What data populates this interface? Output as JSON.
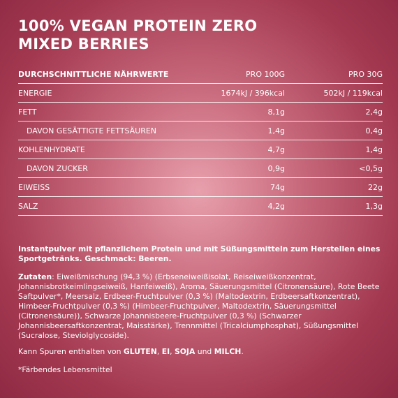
{
  "title_line1": "100% VEGAN PROTEIN ZERO",
  "title_line2": "MIXED BERRIES",
  "table": {
    "headers": [
      "DURCHSCHNITTLICHE NÄHRWERTE",
      "PRO 100G",
      "PRO 30G"
    ],
    "rows": [
      {
        "label": "ENERGIE",
        "per100": "1674kJ / 396kcal",
        "per30": "502kJ / 119kcal"
      },
      {
        "label": "FETT",
        "per100": "8,1g",
        "per30": "2,4g"
      },
      {
        "label": "DAVON GESÄTTIGTE FETTSÄUREN",
        "per100": "1,4g",
        "per30": "0,4g"
      },
      {
        "label": "KOHLENHYDRATE",
        "per100": "4,7g",
        "per30": "1,4g"
      },
      {
        "label": "DAVON ZUCKER",
        "per100": "0,9g",
        "per30": "<0,5g"
      },
      {
        "label": "EIWEISS",
        "per100": "74g",
        "per30": "22g"
      },
      {
        "label": "SALZ",
        "per100": "4,2g",
        "per30": "1,3g"
      }
    ]
  },
  "description": "Instantpulver mit pflanzlichem Protein und mit Süßungsmitteln zum Herstellen eines Sportgetränks. Geschmack: Beeren.",
  "ingredients_label": "Zutaten",
  "ingredients_text": ": Eiweißmischung (94,3 %) (Erbseneiweißisolat, Reiseiweißkonzentrat, Johannisbrotkeimlingseiweiß, Hanfeiweiß), Aroma, Säuerungsmittel (Citronensäure), Rote Beete Saftpulver*, Meersalz, Erdbeer-Fruchtpulver (0,3 %) (Maltodextrin, Erdbeersaftkonzentrat), Himbeer-Fruchtpulver (0,3 %) (Himbeer-Fruchtpulver, Maltodextrin, Säuerungsmittel (Citronensäure)), Schwarze Johannisbeere-Fruchtpulver (0,3 %) (Schwarzer Johannisbeersaftkonzentrat, Maisstärke), Trennmittel (Tricalciumphosphat), Süßungsmittel (Sucralose, Steviolglycoside).",
  "allergens": {
    "t1": "Kann Spuren enthalten von ",
    "a1": "GLUTEN",
    "t2": ", ",
    "a2": "EI",
    "t3": ", ",
    "a3": "SOJA",
    "t4": " und ",
    "a4": "MILCH",
    "t5": "."
  },
  "footnote": "*Färbendes Lebensmittel"
}
